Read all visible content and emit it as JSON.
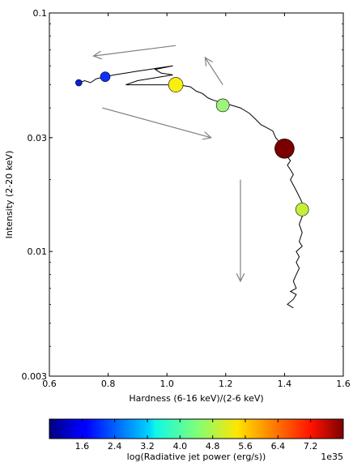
{
  "chart_data": {
    "type": "scatter",
    "xlabel": "Hardness (6-16 keV)/(2-6 keV)",
    "ylabel": "Intensity (2-20 keV)",
    "x_ticks": [
      "0.6",
      "0.8",
      "1.0",
      "1.2",
      "1.4",
      "1.6"
    ],
    "y_ticks": [
      "0.1",
      "0.03",
      "0.01",
      "0.003"
    ],
    "xlim": [
      0.6,
      1.6
    ],
    "ylim": [
      0.003,
      0.1
    ],
    "y_scale": "log",
    "grid": false,
    "track": {
      "name": "hardness-intensity track",
      "color": "#000000",
      "points": [
        [
          0.7,
          0.051
        ],
        [
          0.72,
          0.052
        ],
        [
          0.74,
          0.051
        ],
        [
          0.76,
          0.053
        ],
        [
          0.79,
          0.054
        ],
        [
          0.82,
          0.055
        ],
        [
          0.86,
          0.056
        ],
        [
          0.9,
          0.057
        ],
        [
          0.94,
          0.058
        ],
        [
          0.98,
          0.059
        ],
        [
          1.02,
          0.06
        ],
        [
          0.96,
          0.058
        ],
        [
          0.98,
          0.056
        ],
        [
          1.02,
          0.055
        ],
        [
          0.94,
          0.053
        ],
        [
          0.9,
          0.052
        ],
        [
          0.86,
          0.05
        ],
        [
          0.92,
          0.05
        ],
        [
          0.98,
          0.05
        ],
        [
          1.04,
          0.05
        ],
        [
          1.08,
          0.049
        ],
        [
          1.1,
          0.047
        ],
        [
          1.12,
          0.046
        ],
        [
          1.14,
          0.044
        ],
        [
          1.16,
          0.043
        ],
        [
          1.19,
          0.042
        ],
        [
          1.22,
          0.041
        ],
        [
          1.25,
          0.04
        ],
        [
          1.28,
          0.038
        ],
        [
          1.3,
          0.036
        ],
        [
          1.32,
          0.034
        ],
        [
          1.34,
          0.033
        ],
        [
          1.36,
          0.032
        ],
        [
          1.37,
          0.03
        ],
        [
          1.38,
          0.029
        ],
        [
          1.4,
          0.027
        ],
        [
          1.41,
          0.025
        ],
        [
          1.42,
          0.024
        ],
        [
          1.41,
          0.023
        ],
        [
          1.42,
          0.022
        ],
        [
          1.43,
          0.021
        ],
        [
          1.42,
          0.02
        ],
        [
          1.43,
          0.019
        ],
        [
          1.44,
          0.018
        ],
        [
          1.45,
          0.017
        ],
        [
          1.46,
          0.016
        ],
        [
          1.45,
          0.015
        ],
        [
          1.46,
          0.014
        ],
        [
          1.45,
          0.013
        ],
        [
          1.46,
          0.012
        ],
        [
          1.45,
          0.011
        ],
        [
          1.46,
          0.0105
        ],
        [
          1.44,
          0.01
        ],
        [
          1.45,
          0.0095
        ],
        [
          1.44,
          0.009
        ],
        [
          1.45,
          0.0085
        ],
        [
          1.44,
          0.008
        ],
        [
          1.43,
          0.0075
        ],
        [
          1.44,
          0.007
        ],
        [
          1.42,
          0.0068
        ],
        [
          1.44,
          0.0066
        ],
        [
          1.43,
          0.0063
        ],
        [
          1.41,
          0.006
        ],
        [
          1.43,
          0.0058
        ]
      ]
    },
    "markers": [
      {
        "x": 0.7,
        "y": 0.051,
        "power": 0.8,
        "color": "#0a1fd8",
        "size": 4
      },
      {
        "x": 0.79,
        "y": 0.054,
        "power": 1.4,
        "color": "#1030ff",
        "size": 6
      },
      {
        "x": 1.03,
        "y": 0.05,
        "power": 5.2,
        "color": "#f7ef12",
        "size": 9
      },
      {
        "x": 1.19,
        "y": 0.041,
        "power": 4.3,
        "color": "#9ef37a",
        "size": 8
      },
      {
        "x": 1.4,
        "y": 0.027,
        "power": 7.7,
        "color": "#7a0000",
        "size": 12
      },
      {
        "x": 1.46,
        "y": 0.015,
        "power": 4.8,
        "color": "#c3f037",
        "size": 8
      }
    ],
    "arrows": [
      {
        "from": [
          1.03,
          0.073
        ],
        "to": [
          0.75,
          0.066
        ],
        "color": "#808080"
      },
      {
        "from": [
          1.19,
          0.05
        ],
        "to": [
          1.13,
          0.065
        ],
        "color": "#808080"
      },
      {
        "from": [
          0.78,
          0.04
        ],
        "to": [
          1.15,
          0.03
        ],
        "color": "#808080"
      },
      {
        "from": [
          1.25,
          0.02
        ],
        "to": [
          1.25,
          0.0075
        ],
        "color": "#808080"
      }
    ],
    "colorbar": {
      "label": "log(Radiative jet power (erg/s))",
      "multiplier": "1e35",
      "ticks": [
        "1.6",
        "2.4",
        "3.2",
        "4.0",
        "4.8",
        "5.6",
        "6.4",
        "7.2"
      ],
      "tick_values": [
        1.6,
        2.4,
        3.2,
        4.0,
        4.8,
        5.6,
        6.4,
        7.2
      ],
      "range": [
        0.8,
        8.0
      ]
    }
  }
}
